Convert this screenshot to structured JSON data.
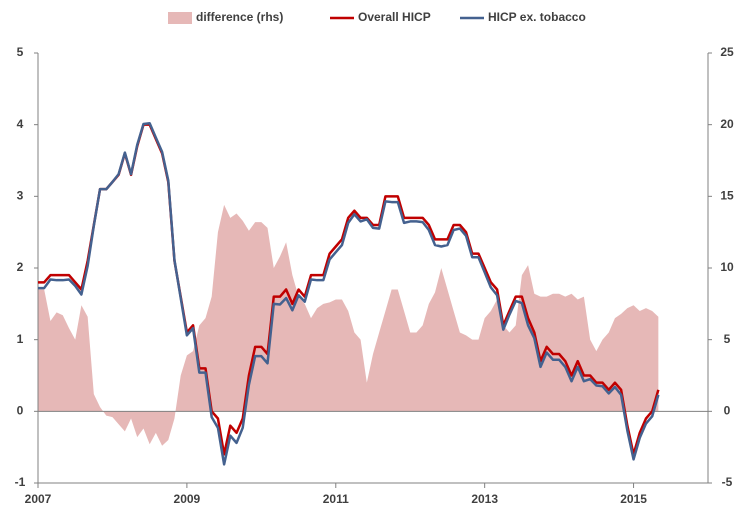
{
  "chart_data": {
    "type": "combo",
    "legend": "top",
    "xlim": [
      2007,
      2016
    ],
    "xticks": [
      2007,
      2009,
      2011,
      2013,
      2015
    ],
    "ylim": [
      -1,
      5
    ],
    "yticks": [
      -1,
      0,
      1,
      2,
      3,
      4,
      5
    ],
    "y2lim": [
      -5,
      25
    ],
    "y2ticks": [
      -5,
      0,
      5,
      10,
      15,
      20,
      25
    ],
    "x": [
      2007,
      2007.083,
      2007.167,
      2007.25,
      2007.333,
      2007.417,
      2007.5,
      2007.583,
      2007.667,
      2007.75,
      2007.833,
      2007.917,
      2008,
      2008.083,
      2008.167,
      2008.25,
      2008.333,
      2008.417,
      2008.5,
      2008.583,
      2008.667,
      2008.75,
      2008.833,
      2008.917,
      2009,
      2009.083,
      2009.167,
      2009.25,
      2009.333,
      2009.417,
      2009.5,
      2009.583,
      2009.667,
      2009.75,
      2009.833,
      2009.917,
      2010,
      2010.083,
      2010.167,
      2010.25,
      2010.333,
      2010.417,
      2010.5,
      2010.583,
      2010.667,
      2010.75,
      2010.833,
      2010.917,
      2011,
      2011.083,
      2011.167,
      2011.25,
      2011.333,
      2011.417,
      2011.5,
      2011.583,
      2011.667,
      2011.75,
      2011.833,
      2011.917,
      2012,
      2012.083,
      2012.167,
      2012.25,
      2012.333,
      2012.417,
      2012.5,
      2012.583,
      2012.667,
      2012.75,
      2012.833,
      2012.917,
      2013,
      2013.083,
      2013.167,
      2013.25,
      2013.333,
      2013.417,
      2013.5,
      2013.583,
      2013.667,
      2013.75,
      2013.833,
      2013.917,
      2014,
      2014.083,
      2014.167,
      2014.25,
      2014.333,
      2014.417,
      2014.5,
      2014.583,
      2014.667,
      2014.75,
      2014.833,
      2014.917,
      2015,
      2015.083,
      2015.167,
      2015.25,
      2015.333
    ],
    "series": [
      {
        "name": "difference (rhs)",
        "type": "area",
        "axis": "y2",
        "color": "#e6b8b7",
        "values": [
          8.5,
          8.5,
          6.3,
          6.9,
          6.7,
          5.8,
          5.0,
          7.4,
          6.6,
          1.2,
          0.3,
          -0.3,
          -0.4,
          -0.9,
          -1.4,
          -0.5,
          -1.8,
          -1.2,
          -2.3,
          -1.5,
          -2.4,
          -2.0,
          -0.5,
          2.5,
          3.9,
          4.2,
          6,
          6.5,
          8,
          12.5,
          14.4,
          13.5,
          13.8,
          13.3,
          12.6,
          13.2,
          13.2,
          12.8,
          10,
          10.8,
          11.8,
          9.5,
          8,
          7.5,
          6.5,
          7.2,
          7.5,
          7.6,
          7.8,
          7.8,
          7,
          5.5,
          5,
          2,
          4,
          5.5,
          7,
          8.5,
          8.5,
          7,
          5.5,
          5.5,
          6,
          7.5,
          8.3,
          10,
          8.5,
          7,
          5.5,
          5.3,
          5,
          5,
          6.5,
          7,
          7.8,
          6,
          5.5,
          6,
          9.5,
          10.2,
          8.2,
          8,
          8,
          8.2,
          8.2,
          8,
          8.2,
          7.8,
          8,
          5,
          4.2,
          5,
          5.5,
          6.5,
          6.8,
          7.2,
          7.4,
          7,
          7.2,
          7,
          6.6
        ]
      },
      {
        "name": "Overall HICP",
        "type": "line",
        "color": "#c00000",
        "values": [
          1.8,
          1.8,
          1.9,
          1.9,
          1.9,
          1.9,
          1.8,
          1.7,
          2.1,
          2.6,
          3.1,
          3.1,
          3.2,
          3.3,
          3.6,
          3.3,
          3.7,
          4.0,
          4.0,
          3.8,
          3.6,
          3.2,
          2.1,
          1.6,
          1.1,
          1.2,
          0.6,
          0.6,
          0.0,
          -0.1,
          -0.6,
          -0.2,
          -0.3,
          -0.1,
          0.5,
          0.9,
          0.9,
          0.8,
          1.6,
          1.6,
          1.7,
          1.5,
          1.7,
          1.6,
          1.9,
          1.9,
          1.9,
          2.2,
          2.3,
          2.4,
          2.7,
          2.8,
          2.7,
          2.7,
          2.6,
          2.6,
          3.0,
          3.0,
          3.0,
          2.7,
          2.7,
          2.7,
          2.7,
          2.6,
          2.4,
          2.4,
          2.4,
          2.6,
          2.6,
          2.5,
          2.2,
          2.2,
          2.0,
          1.8,
          1.7,
          1.2,
          1.4,
          1.6,
          1.6,
          1.3,
          1.1,
          0.7,
          0.9,
          0.8,
          0.8,
          0.7,
          0.5,
          0.7,
          0.5,
          0.5,
          0.4,
          0.4,
          0.3,
          0.4,
          0.3,
          -0.2,
          -0.6,
          -0.3,
          -0.1,
          0.0,
          0.3
        ]
      },
      {
        "name": "HICP ex. tobacco",
        "type": "line",
        "color": "#44618f",
        "values": [
          1.72,
          1.72,
          1.84,
          1.83,
          1.83,
          1.84,
          1.75,
          1.63,
          2.03,
          2.59,
          3.1,
          3.1,
          3.2,
          3.31,
          3.61,
          3.31,
          3.72,
          4.01,
          4.02,
          3.82,
          3.62,
          3.22,
          2.11,
          1.58,
          1.06,
          1.16,
          0.54,
          0.54,
          -0.08,
          -0.23,
          -0.74,
          -0.34,
          -0.44,
          -0.23,
          0.37,
          0.77,
          0.77,
          0.67,
          1.5,
          1.49,
          1.58,
          1.41,
          1.62,
          1.53,
          1.84,
          1.83,
          1.83,
          2.12,
          2.22,
          2.32,
          2.63,
          2.75,
          2.65,
          2.68,
          2.56,
          2.55,
          2.93,
          2.92,
          2.92,
          2.63,
          2.65,
          2.65,
          2.64,
          2.53,
          2.32,
          2.3,
          2.32,
          2.53,
          2.55,
          2.45,
          2.15,
          2.15,
          1.94,
          1.73,
          1.62,
          1.14,
          1.35,
          1.54,
          1.51,
          1.2,
          1.02,
          0.62,
          0.82,
          0.72,
          0.72,
          0.62,
          0.42,
          0.62,
          0.42,
          0.45,
          0.36,
          0.35,
          0.25,
          0.34,
          0.23,
          -0.27,
          -0.67,
          -0.37,
          -0.17,
          -0.07,
          0.23
        ]
      }
    ]
  }
}
